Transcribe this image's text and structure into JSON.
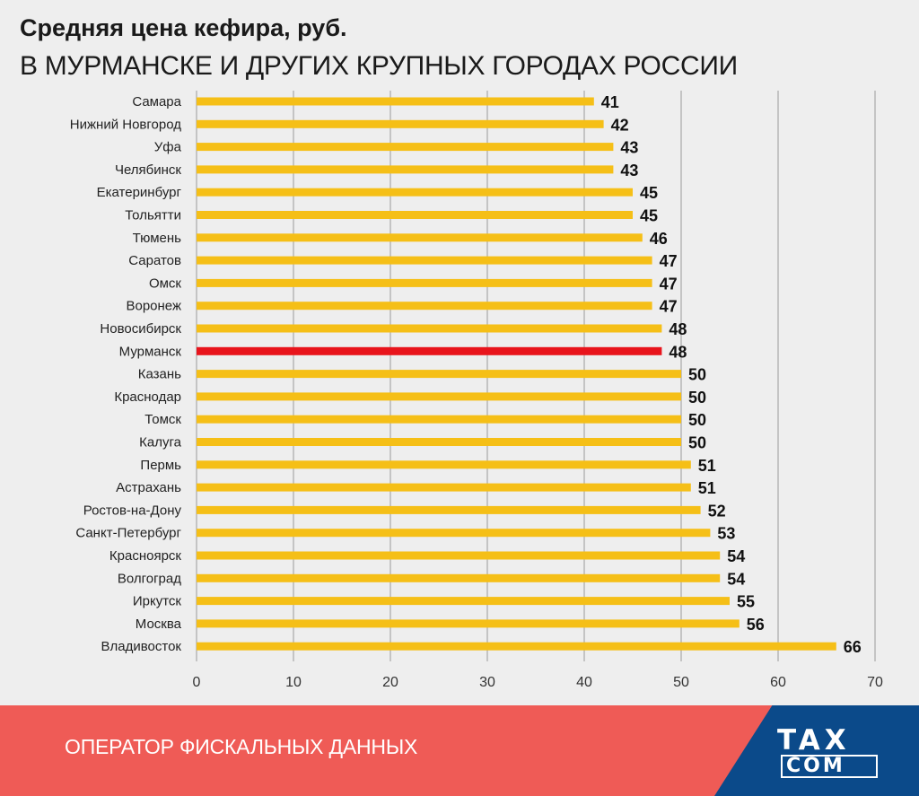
{
  "header": {
    "title": "Средняя цена кефира, руб.",
    "subtitle": "В МУРМАНСКЕ И ДРУГИХ КРУПНЫХ ГОРОДАХ РОССИИ"
  },
  "footer": {
    "text": "ОПЕРАТОР ФИСКАЛЬНЫХ ДАННЫХ",
    "logo_line1": "TAX",
    "logo_line2": "COM"
  },
  "colors": {
    "bar": "#f5bf17",
    "highlight": "#e8141c",
    "footer_red": "#ef5b56",
    "footer_blue": "#0b4a8a"
  },
  "chart_data": {
    "type": "bar",
    "orientation": "horizontal",
    "title": "Средняя цена кефира, руб.",
    "subtitle": "В МУРМАНСКЕ И ДРУГИХ КРУПНЫХ ГОРОДАХ РОССИИ",
    "categories": [
      "Самара",
      "Нижний Новгород",
      "Уфа",
      "Челябинск",
      "Екатеринбург",
      "Тольятти",
      "Тюмень",
      "Саратов",
      "Омск",
      "Воронеж",
      "Новосибирск",
      "Мурманск",
      "Казань",
      "Краснодар",
      "Томск",
      "Калуга",
      "Пермь",
      "Астрахань",
      "Ростов-на-Дону",
      "Санкт-Петербург",
      "Красноярск",
      "Волгоград",
      "Иркутск",
      "Москва",
      "Владивосток"
    ],
    "values": [
      41,
      42,
      43,
      43,
      45,
      45,
      46,
      47,
      47,
      47,
      48,
      48,
      50,
      50,
      50,
      50,
      51,
      51,
      52,
      53,
      54,
      54,
      55,
      56,
      66
    ],
    "highlight": "Мурманск",
    "xlim": [
      0,
      70
    ],
    "xticks": [
      0,
      10,
      20,
      30,
      40,
      50,
      60,
      70
    ],
    "grid": true,
    "legend": "none"
  }
}
